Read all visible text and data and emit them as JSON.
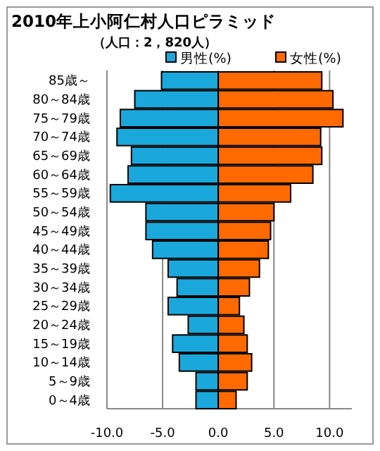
{
  "chart_data": {
    "type": "bar",
    "orientation": "horizontal",
    "title": "2010年上小阿仁村人口ピラミッド",
    "subtitle": "（人口：2，820人）",
    "categories": [
      "85歳～",
      "80～84歳",
      "75～79歳",
      "70～74歳",
      "65～69歳",
      "60～64歳",
      "55～59歳",
      "50～54歳",
      "45～49歳",
      "40～44歳",
      "35～39歳",
      "30～34歳",
      "25～29歳",
      "20～24歳",
      "15～19歳",
      "10～14歳",
      "5～9歳",
      "0～4歳"
    ],
    "series": [
      {
        "name": "男性(%)",
        "color": "#1aa8dc",
        "values": [
          -5.1,
          -7.5,
          -8.8,
          -9.1,
          -7.8,
          -8.1,
          -9.7,
          -6.5,
          -6.5,
          -5.9,
          -4.5,
          -3.7,
          -4.5,
          -2.7,
          -4.1,
          -3.5,
          -2.0,
          -2.0
        ]
      },
      {
        "name": "女性(%)",
        "color": "#ff6a00",
        "values": [
          9.3,
          10.3,
          11.2,
          9.2,
          9.3,
          8.5,
          6.5,
          5.0,
          4.7,
          4.5,
          3.7,
          2.8,
          1.9,
          2.3,
          2.6,
          3.0,
          2.6,
          1.6
        ]
      }
    ],
    "xlim": [
      -10,
      12
    ],
    "xticks": [
      {
        "value": -10,
        "label": "-10.0"
      },
      {
        "value": -5,
        "label": "-5.0"
      },
      {
        "value": 0,
        "label": "0.0"
      },
      {
        "value": 5,
        "label": "5.0"
      },
      {
        "value": 10,
        "label": "10.0"
      }
    ],
    "grid": "x",
    "legend": "top right",
    "stacked": true
  }
}
